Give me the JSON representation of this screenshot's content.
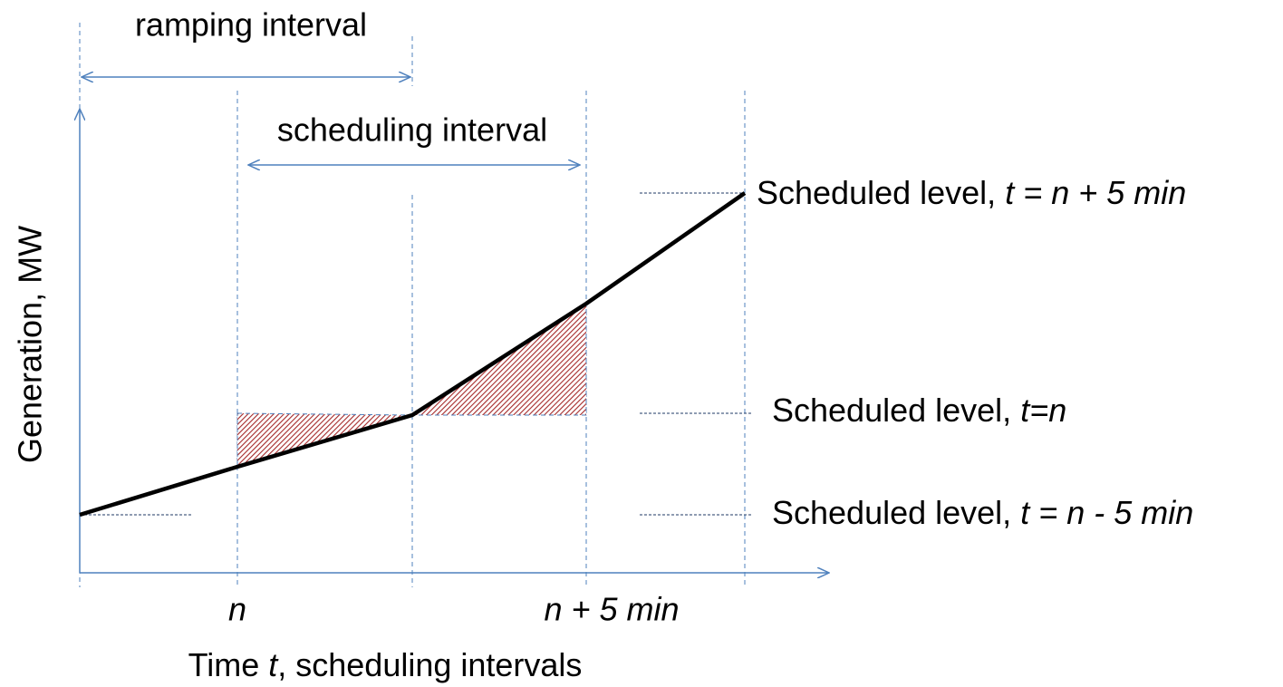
{
  "intervals": {
    "ramping": "ramping interval",
    "scheduling": "scheduling interval"
  },
  "y_axis_label": "Generation, MW",
  "x_axis_label": {
    "before": "Time ",
    "italic": "t",
    "after": ", scheduling intervals"
  },
  "x_ticks": [
    "n",
    "n + 5 min"
  ],
  "levels": [
    {
      "text": "Scheduled level, ",
      "italic": "t = n + 5 min"
    },
    {
      "text": "Scheduled level, ",
      "italic": "t=n"
    },
    {
      "text": "Scheduled level, ",
      "italic": "t = n - 5 min"
    }
  ]
}
